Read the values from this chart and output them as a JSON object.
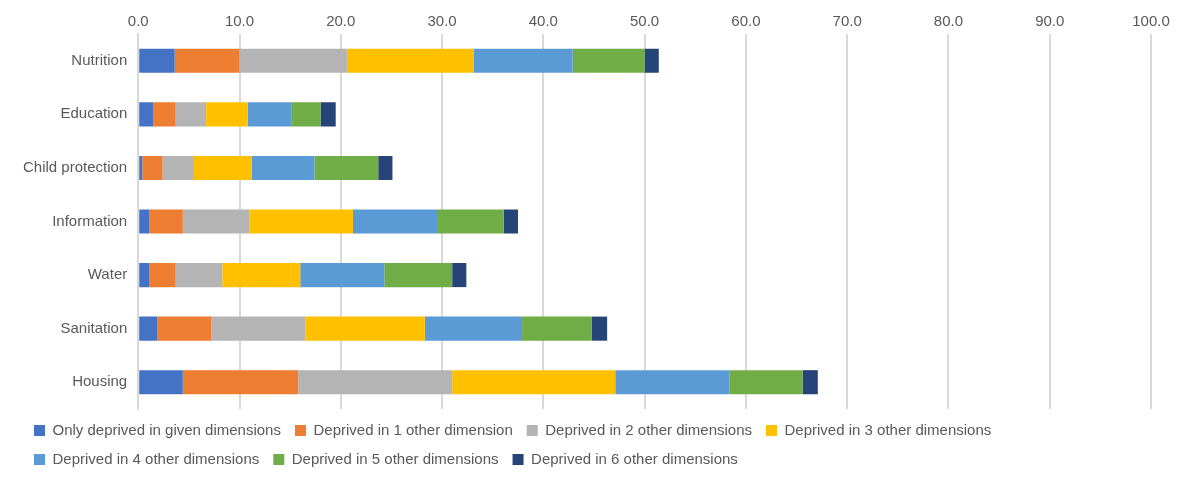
{
  "chart_data": {
    "type": "bar",
    "orientation": "horizontal",
    "stacked": true,
    "categories": [
      "Nutrition",
      "Education",
      "Child protection",
      "Information",
      "Water",
      "Sanitation",
      "Housing"
    ],
    "series": [
      {
        "name": "Only deprived in given dimensions",
        "color": "#4472c4",
        "values": [
          3.6,
          1.5,
          0.4,
          1.1,
          1.1,
          1.9,
          4.4
        ]
      },
      {
        "name": "Deprived in 1 other dimension",
        "color": "#ed7d31",
        "values": [
          6.4,
          2.2,
          2.0,
          3.3,
          2.6,
          5.3,
          11.4
        ]
      },
      {
        "name": "Deprived in 2 other dimensions",
        "color": "#b4b4b4",
        "values": [
          10.6,
          3.0,
          3.1,
          6.6,
          4.6,
          9.3,
          15.2
        ]
      },
      {
        "name": "Deprived in 3 other dimensions",
        "color": "#ffc000",
        "values": [
          12.5,
          4.1,
          5.7,
          10.2,
          7.7,
          11.8,
          16.1
        ]
      },
      {
        "name": "Deprived in 4 other dimensions",
        "color": "#5b9bd5",
        "values": [
          9.8,
          4.3,
          6.2,
          8.3,
          8.3,
          9.6,
          11.3
        ]
      },
      {
        "name": "Deprived in 5 other dimensions",
        "color": "#70ad47",
        "values": [
          7.1,
          2.9,
          6.3,
          6.6,
          6.7,
          6.9,
          7.2
        ]
      },
      {
        "name": "Deprived in 6 other dimensions",
        "color": "#264478",
        "values": [
          1.4,
          1.5,
          1.4,
          1.4,
          1.4,
          1.5,
          1.5
        ]
      }
    ],
    "xlim": [
      0,
      100
    ],
    "xticks": [
      {
        "value": 0,
        "label": "0.0"
      },
      {
        "value": 10,
        "label": "10.0"
      },
      {
        "value": 20,
        "label": "20.0"
      },
      {
        "value": 30,
        "label": "30.0"
      },
      {
        "value": 40,
        "label": "40.0"
      },
      {
        "value": 50,
        "label": "50.0"
      },
      {
        "value": 60,
        "label": "60.0"
      },
      {
        "value": 70,
        "label": "70.0"
      },
      {
        "value": 80,
        "label": "80.0"
      },
      {
        "value": 90,
        "label": "90.0"
      },
      {
        "value": 100,
        "label": "100.0"
      }
    ],
    "grid": "x",
    "legend": "bottom"
  }
}
